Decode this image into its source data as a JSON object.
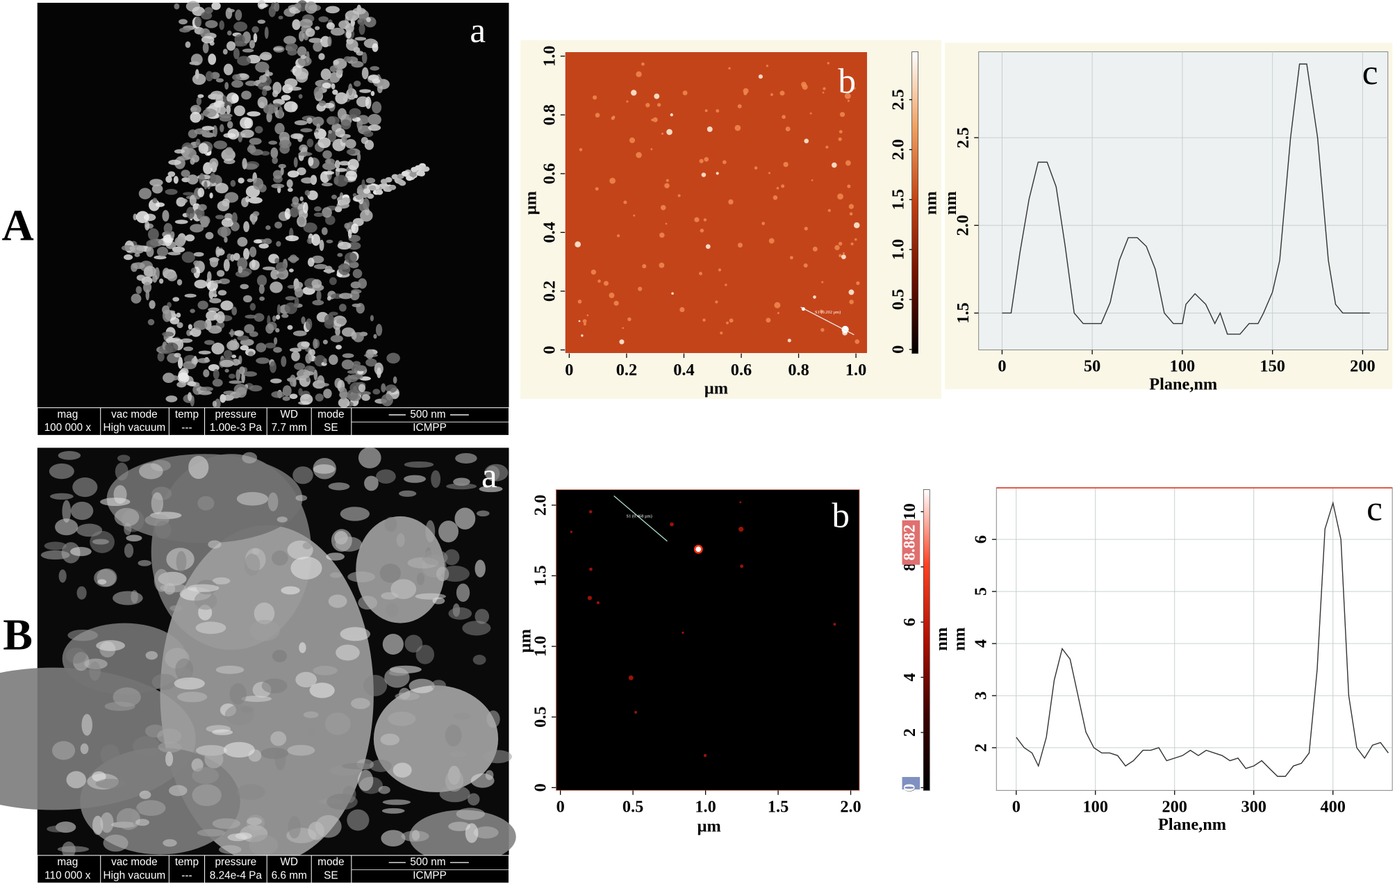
{
  "row_labels": [
    "A",
    "B"
  ],
  "sem_images": [
    {
      "letter": "a",
      "info_headers": [
        "mag",
        "vac mode",
        "temp",
        "pressure",
        "WD",
        "mode"
      ],
      "info_values": [
        "100 000 x",
        "High vacuum",
        "---",
        "1.00e-3 Pa",
        "7.7 mm",
        "SE"
      ],
      "scale_bar": "500 nm",
      "facility": "ICMPP"
    },
    {
      "letter": "a",
      "info_headers": [
        "mag",
        "vac mode",
        "temp",
        "pressure",
        "WD",
        "mode"
      ],
      "info_values": [
        "110 000 x",
        "High vacuum",
        "---",
        "8.24e-4 Pa",
        "6.6 mm",
        "SE"
      ],
      "scale_bar": "500 nm",
      "facility": "ICMPP"
    }
  ],
  "chart_data": [
    {
      "type": "afm",
      "letter": "b",
      "xlabel": "µm",
      "ylabel": "µm",
      "xlim": [
        -0.015,
        1.04
      ],
      "ylim": [
        -0.012,
        1.015
      ],
      "xticks": [
        0,
        0.2,
        0.4,
        0.6,
        0.8,
        {
          "value": 1,
          "label": "1.0"
        }
      ],
      "yticks": [
        0,
        0.2,
        0.4,
        0.6,
        0.8,
        {
          "value": 1,
          "label": "1.0"
        }
      ],
      "annotation": "S1 (0.202 µm)",
      "background": "#c4441a",
      "colorbar": {
        "label": "nm",
        "lim": [
          -0.04,
          2.98
        ],
        "ticks": [
          0,
          0.5,
          {
            "value": 1,
            "label": "1.0"
          },
          1.5,
          {
            "value": 2,
            "label": "2.0"
          },
          2.5
        ],
        "colors": [
          "#000000",
          "#6e1000",
          "#c24010",
          "#f0a060",
          "#ffffff"
        ]
      }
    },
    {
      "type": "line",
      "letter": "c",
      "xlabel": "Plane,nm",
      "ylabel": "nm",
      "xlim": [
        -13,
        214
      ],
      "ylim": [
        1.29,
        2.99
      ],
      "xticks": [
        0,
        50,
        100,
        150,
        200
      ],
      "yticks": [
        1.5,
        {
          "value": 2,
          "label": "2.0"
        },
        2.5
      ],
      "grid": true,
      "background": "#edf1f1",
      "color": "#333333",
      "x": [
        0,
        5,
        10,
        15,
        20,
        25,
        30,
        35,
        40,
        45,
        50,
        55,
        60,
        65,
        70,
        75,
        80,
        85,
        90,
        95,
        100,
        102,
        107,
        113,
        118,
        121,
        125,
        132,
        137,
        142,
        145,
        150,
        154,
        160,
        165,
        169,
        175,
        181,
        185,
        189,
        195,
        204
      ],
      "values": [
        1.5,
        1.5,
        1.85,
        2.15,
        2.36,
        2.36,
        2.22,
        1.88,
        1.5,
        1.44,
        1.44,
        1.44,
        1.56,
        1.8,
        1.93,
        1.93,
        1.88,
        1.75,
        1.5,
        1.44,
        1.44,
        1.55,
        1.61,
        1.55,
        1.44,
        1.5,
        1.38,
        1.38,
        1.44,
        1.44,
        1.5,
        1.62,
        1.8,
        2.5,
        2.92,
        2.92,
        2.5,
        1.8,
        1.55,
        1.5,
        1.5,
        1.5
      ]
    },
    {
      "type": "afm",
      "letter": "b",
      "xlabel": "µm",
      "ylabel": "µm",
      "xlim": [
        -0.03,
        2.06
      ],
      "ylim": [
        -0.02,
        2.11
      ],
      "xticks": [
        0,
        0.5,
        {
          "value": 1,
          "label": "1.0"
        },
        1.5,
        {
          "value": 2,
          "label": "2.0"
        }
      ],
      "yticks": [
        0,
        0.5,
        {
          "value": 1,
          "label": "1.0"
        },
        1.5,
        {
          "value": 2,
          "label": "2.0"
        }
      ],
      "annotation": "S1 (0.468 µm)",
      "background": "#000000",
      "colorbar": {
        "label": "nm",
        "lim": [
          -0.1,
          10.8
        ],
        "ticks": [
          0,
          2,
          4,
          6,
          8,
          10
        ],
        "cursor_marks": [
          8.882,
          0
        ],
        "colors": [
          "#000000",
          "#3a0000",
          "#b01000",
          "#ff4020",
          "#ffffff"
        ]
      }
    },
    {
      "type": "line",
      "letter": "c",
      "xlabel": "Plane,nm",
      "ylabel": "nm",
      "xlim": [
        -25,
        475
      ],
      "ylim": [
        1.18,
        6.99
      ],
      "xticks": [
        0,
        100,
        200,
        300,
        400
      ],
      "yticks": [
        2,
        3,
        4,
        5,
        6
      ],
      "grid": true,
      "background": "#ffffff",
      "color": "#333333",
      "x": [
        0,
        10,
        20,
        28,
        38,
        48,
        58,
        68,
        78,
        88,
        98,
        108,
        118,
        128,
        138,
        148,
        160,
        170,
        180,
        190,
        200,
        210,
        220,
        230,
        240,
        250,
        260,
        270,
        280,
        290,
        300,
        310,
        320,
        330,
        340,
        350,
        360,
        370,
        380,
        390,
        400,
        410,
        420,
        430,
        440,
        450,
        460,
        470
      ],
      "values": [
        2.2,
        2.0,
        1.9,
        1.65,
        2.2,
        3.3,
        3.9,
        3.7,
        3.0,
        2.3,
        2.0,
        1.9,
        1.9,
        1.85,
        1.65,
        1.75,
        1.95,
        1.95,
        2.0,
        1.75,
        1.8,
        1.85,
        1.95,
        1.85,
        1.95,
        1.9,
        1.85,
        1.75,
        1.8,
        1.6,
        1.65,
        1.75,
        1.6,
        1.45,
        1.45,
        1.65,
        1.7,
        1.9,
        3.5,
        6.2,
        6.7,
        6.0,
        3.0,
        2.0,
        1.8,
        2.05,
        2.1,
        1.9
      ]
    }
  ]
}
